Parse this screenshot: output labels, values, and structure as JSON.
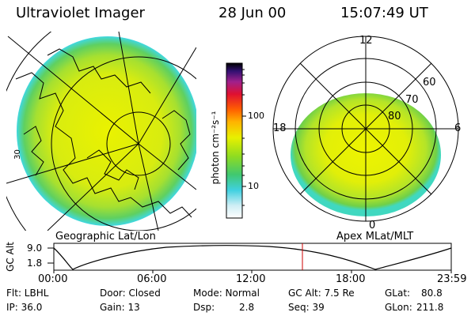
{
  "header": {
    "instrument": "Ultraviolet Imager",
    "date": "28 Jun 00",
    "time": "15:07:49 UT"
  },
  "left_panel": {
    "caption": "Geographic Lat/Lon",
    "edge_label": "30"
  },
  "right_panel": {
    "caption": "Apex MLat/MLT",
    "mlt_labels": {
      "top": "12",
      "left": "18",
      "right": "6",
      "bottom": "0"
    },
    "lat_labels": [
      "60",
      "70",
      "80"
    ]
  },
  "colorbar": {
    "units": "photon cm⁻²s⁻¹",
    "ticks": [
      "100",
      "10"
    ]
  },
  "timeline": {
    "ylabel": "GC Alt",
    "yticks": [
      "9.0",
      "1.8"
    ],
    "xticks": [
      "00:00",
      "06:00",
      "12:00",
      "18:00",
      "23:59"
    ]
  },
  "info": {
    "flt": "Flt: LBHL",
    "ip": "IP: 36.0",
    "door": "Door: Closed",
    "gain": "Gain: 13",
    "mode": "Mode: Normal",
    "dsp_label": "Dsp:",
    "dsp_value": "2.8",
    "gcalt": "GC Alt: 7.5 Re",
    "seq": "Seq: 39",
    "glat_label": "GLat:",
    "glat_value": "80.8",
    "glon_label": "GLon:",
    "glon_value": "211.8"
  },
  "colors": {
    "aurora_yellow": "#e8f000",
    "aurora_green": "#7ed321",
    "aurora_cyan": "#40d8e0",
    "time_marker": "#cc0000"
  }
}
